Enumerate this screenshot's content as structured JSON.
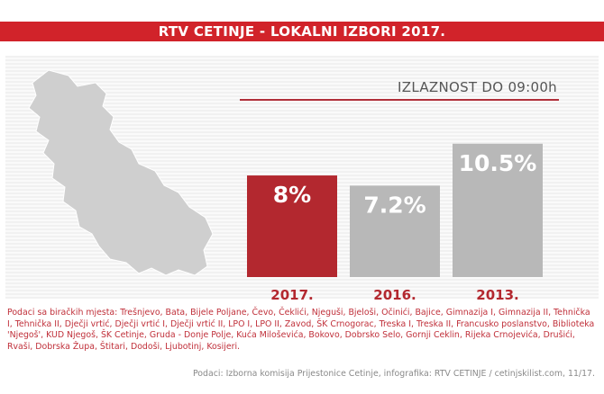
{
  "header": {
    "title": "RTV CETINJE - LOKALNI IZBORI 2017."
  },
  "chart_data": {
    "type": "bar",
    "title": "IZLAZNOST DO 09:00h",
    "categories": [
      "2017.",
      "2016.",
      "2013."
    ],
    "values": [
      8,
      7.2,
      10.5
    ],
    "value_labels": [
      "8%",
      "7.2%",
      "10.5%"
    ],
    "unit": "%",
    "colors": [
      "#b3282f",
      "#b8b8b8",
      "#b8b8b8"
    ],
    "ylim": [
      0,
      12
    ],
    "xlabel": "",
    "ylabel": "",
    "grid": false,
    "legend": "none"
  },
  "notes": {
    "polling_places": "Podaci sa biračkih mjesta: Trešnjevo, Bata, Bijele Poljane, Čevo, Čeklići, Njeguši, Bjeloši, Očinići, Bajice, Gimnazija I, Gimnazija II, Tehnička I, Tehnička II, Dječji vrtić, Dječji vrtić I, Dječji vrtić II, LPO I, LPO II, Zavod, ŠK Crnogorac, Treska I, Treska II, Francusko poslanstvo, Biblioteka 'Njegoš', KUD Njegoš, ŠK Cetinje, Gruda - Donje Polje, Kuća Miloševića, Bokovo, Dobrsko Selo, Gornji Ceklin, Rijeka Crnojevića, Drušići, Rvaši, Dobrska Župa, Štitari, Dodoši, Ljubotinj, Kosijeri."
  },
  "footer": {
    "source": "Podaci: Izborna komisija Prijestonice Cetinje, infografika: RTV CETINJE / cetinjskilist.com, 11/17."
  },
  "colors": {
    "accent": "#d1232a",
    "bar_current": "#b3282f",
    "bar_past": "#b8b8b8",
    "map": "#cfcfcf"
  }
}
